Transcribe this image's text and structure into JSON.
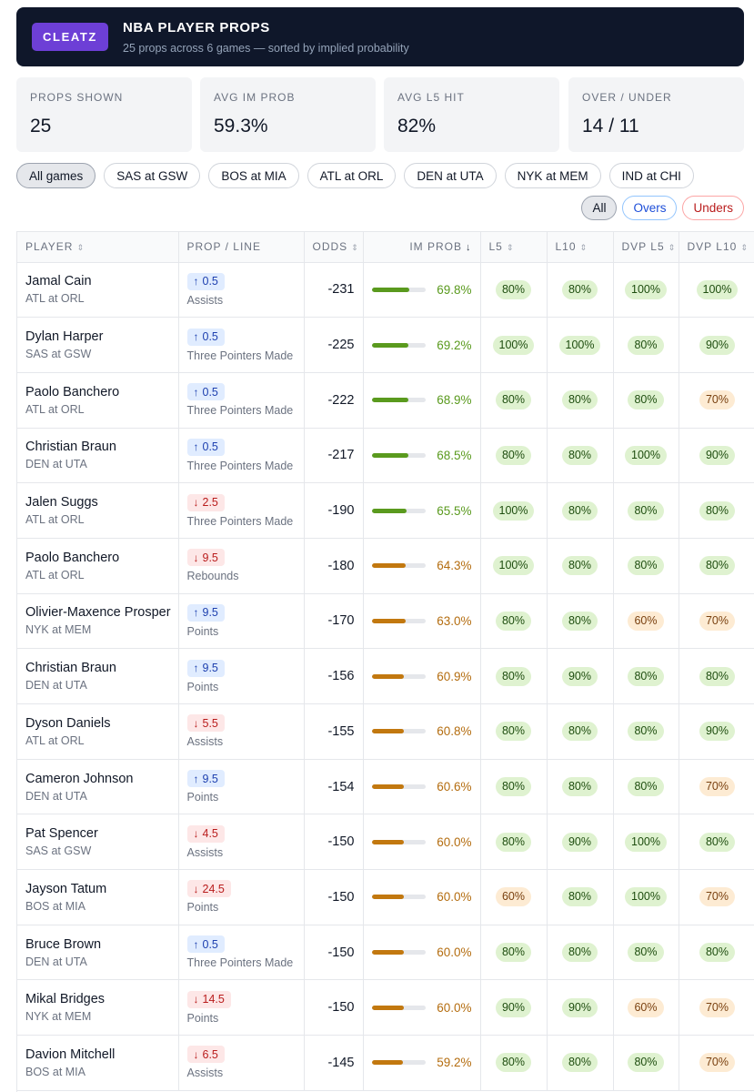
{
  "header": {
    "brand": "CLEATZ",
    "title": "NBA PLAYER PROPS",
    "subtitle": "25 props across 6 games — sorted by implied probability"
  },
  "stats": [
    {
      "label": "PROPS SHOWN",
      "value": "25"
    },
    {
      "label": "AVG IM PROB",
      "value": "59.3%"
    },
    {
      "label": "AVG L5 HIT",
      "value": "82%"
    },
    {
      "label": "OVER / UNDER",
      "value": "14 / 11"
    }
  ],
  "game_filters": [
    "All games",
    "SAS at GSW",
    "BOS at MIA",
    "ATL at ORL",
    "DEN at UTA",
    "NYK at MEM",
    "IND at CHI"
  ],
  "side_filters": [
    "All",
    "Overs",
    "Unders"
  ],
  "columns": {
    "player": "PLAYER",
    "prop": "PROP / LINE",
    "odds": "ODDS",
    "prob": "IM PROB",
    "l5": "L5",
    "l10": "L10",
    "dvp_l5": "DVP L5",
    "dvp_l10": "DVP L10"
  },
  "icons": {
    "sort": "sort-arrows-icon",
    "sort_active": "sort-down-arrow-icon",
    "over": "arrow-up-icon",
    "under": "arrow-down-icon"
  },
  "colors": {
    "header_bg": "#0f172a",
    "brand": "#6d3fd6",
    "prob_high": "#5a9a1e",
    "prob_mid": "#c2780f",
    "over": "#1e40af",
    "under": "#b91c1c"
  },
  "rows": [
    {
      "player": "Jamal Cain",
      "game": "ATL at ORL",
      "dir": "over",
      "arrow": "↑",
      "line": "0.5",
      "stat": "Assists",
      "odds": "-231",
      "prob": "69.8%",
      "l5": "80%",
      "l10": "80%",
      "dvp_l5": "100%",
      "dvp_l10": "100%"
    },
    {
      "player": "Dylan Harper",
      "game": "SAS at GSW",
      "dir": "over",
      "arrow": "↑",
      "line": "0.5",
      "stat": "Three Pointers Made",
      "odds": "-225",
      "prob": "69.2%",
      "l5": "100%",
      "l10": "100%",
      "dvp_l5": "80%",
      "dvp_l10": "90%"
    },
    {
      "player": "Paolo Banchero",
      "game": "ATL at ORL",
      "dir": "over",
      "arrow": "↑",
      "line": "0.5",
      "stat": "Three Pointers Made",
      "odds": "-222",
      "prob": "68.9%",
      "l5": "80%",
      "l10": "80%",
      "dvp_l5": "80%",
      "dvp_l10": "70%"
    },
    {
      "player": "Christian Braun",
      "game": "DEN at UTA",
      "dir": "over",
      "arrow": "↑",
      "line": "0.5",
      "stat": "Three Pointers Made",
      "odds": "-217",
      "prob": "68.5%",
      "l5": "80%",
      "l10": "80%",
      "dvp_l5": "100%",
      "dvp_l10": "90%"
    },
    {
      "player": "Jalen Suggs",
      "game": "ATL at ORL",
      "dir": "under",
      "arrow": "↓",
      "line": "2.5",
      "stat": "Three Pointers Made",
      "odds": "-190",
      "prob": "65.5%",
      "l5": "100%",
      "l10": "80%",
      "dvp_l5": "80%",
      "dvp_l10": "80%"
    },
    {
      "player": "Paolo Banchero",
      "game": "ATL at ORL",
      "dir": "under",
      "arrow": "↓",
      "line": "9.5",
      "stat": "Rebounds",
      "odds": "-180",
      "prob": "64.3%",
      "l5": "100%",
      "l10": "80%",
      "dvp_l5": "80%",
      "dvp_l10": "80%"
    },
    {
      "player": "Olivier-Maxence Prosper",
      "game": "NYK at MEM",
      "dir": "over",
      "arrow": "↑",
      "line": "9.5",
      "stat": "Points",
      "odds": "-170",
      "prob": "63.0%",
      "l5": "80%",
      "l10": "80%",
      "dvp_l5": "60%",
      "dvp_l10": "70%"
    },
    {
      "player": "Christian Braun",
      "game": "DEN at UTA",
      "dir": "over",
      "arrow": "↑",
      "line": "9.5",
      "stat": "Points",
      "odds": "-156",
      "prob": "60.9%",
      "l5": "80%",
      "l10": "90%",
      "dvp_l5": "80%",
      "dvp_l10": "80%"
    },
    {
      "player": "Dyson Daniels",
      "game": "ATL at ORL",
      "dir": "under",
      "arrow": "↓",
      "line": "5.5",
      "stat": "Assists",
      "odds": "-155",
      "prob": "60.8%",
      "l5": "80%",
      "l10": "80%",
      "dvp_l5": "80%",
      "dvp_l10": "90%"
    },
    {
      "player": "Cameron Johnson",
      "game": "DEN at UTA",
      "dir": "over",
      "arrow": "↑",
      "line": "9.5",
      "stat": "Points",
      "odds": "-154",
      "prob": "60.6%",
      "l5": "80%",
      "l10": "80%",
      "dvp_l5": "80%",
      "dvp_l10": "70%"
    },
    {
      "player": "Pat Spencer",
      "game": "SAS at GSW",
      "dir": "under",
      "arrow": "↓",
      "line": "4.5",
      "stat": "Assists",
      "odds": "-150",
      "prob": "60.0%",
      "l5": "80%",
      "l10": "90%",
      "dvp_l5": "100%",
      "dvp_l10": "80%"
    },
    {
      "player": "Jayson Tatum",
      "game": "BOS at MIA",
      "dir": "under",
      "arrow": "↓",
      "line": "24.5",
      "stat": "Points",
      "odds": "-150",
      "prob": "60.0%",
      "l5": "60%",
      "l10": "80%",
      "dvp_l5": "100%",
      "dvp_l10": "70%"
    },
    {
      "player": "Bruce Brown",
      "game": "DEN at UTA",
      "dir": "over",
      "arrow": "↑",
      "line": "0.5",
      "stat": "Three Pointers Made",
      "odds": "-150",
      "prob": "60.0%",
      "l5": "80%",
      "l10": "80%",
      "dvp_l5": "80%",
      "dvp_l10": "80%"
    },
    {
      "player": "Mikal Bridges",
      "game": "NYK at MEM",
      "dir": "under",
      "arrow": "↓",
      "line": "14.5",
      "stat": "Points",
      "odds": "-150",
      "prob": "60.0%",
      "l5": "90%",
      "l10": "90%",
      "dvp_l5": "60%",
      "dvp_l10": "70%"
    },
    {
      "player": "Davion Mitchell",
      "game": "BOS at MIA",
      "dir": "under",
      "arrow": "↓",
      "line": "6.5",
      "stat": "Assists",
      "odds": "-145",
      "prob": "59.2%",
      "l5": "80%",
      "l10": "80%",
      "dvp_l5": "80%",
      "dvp_l10": "70%"
    }
  ]
}
